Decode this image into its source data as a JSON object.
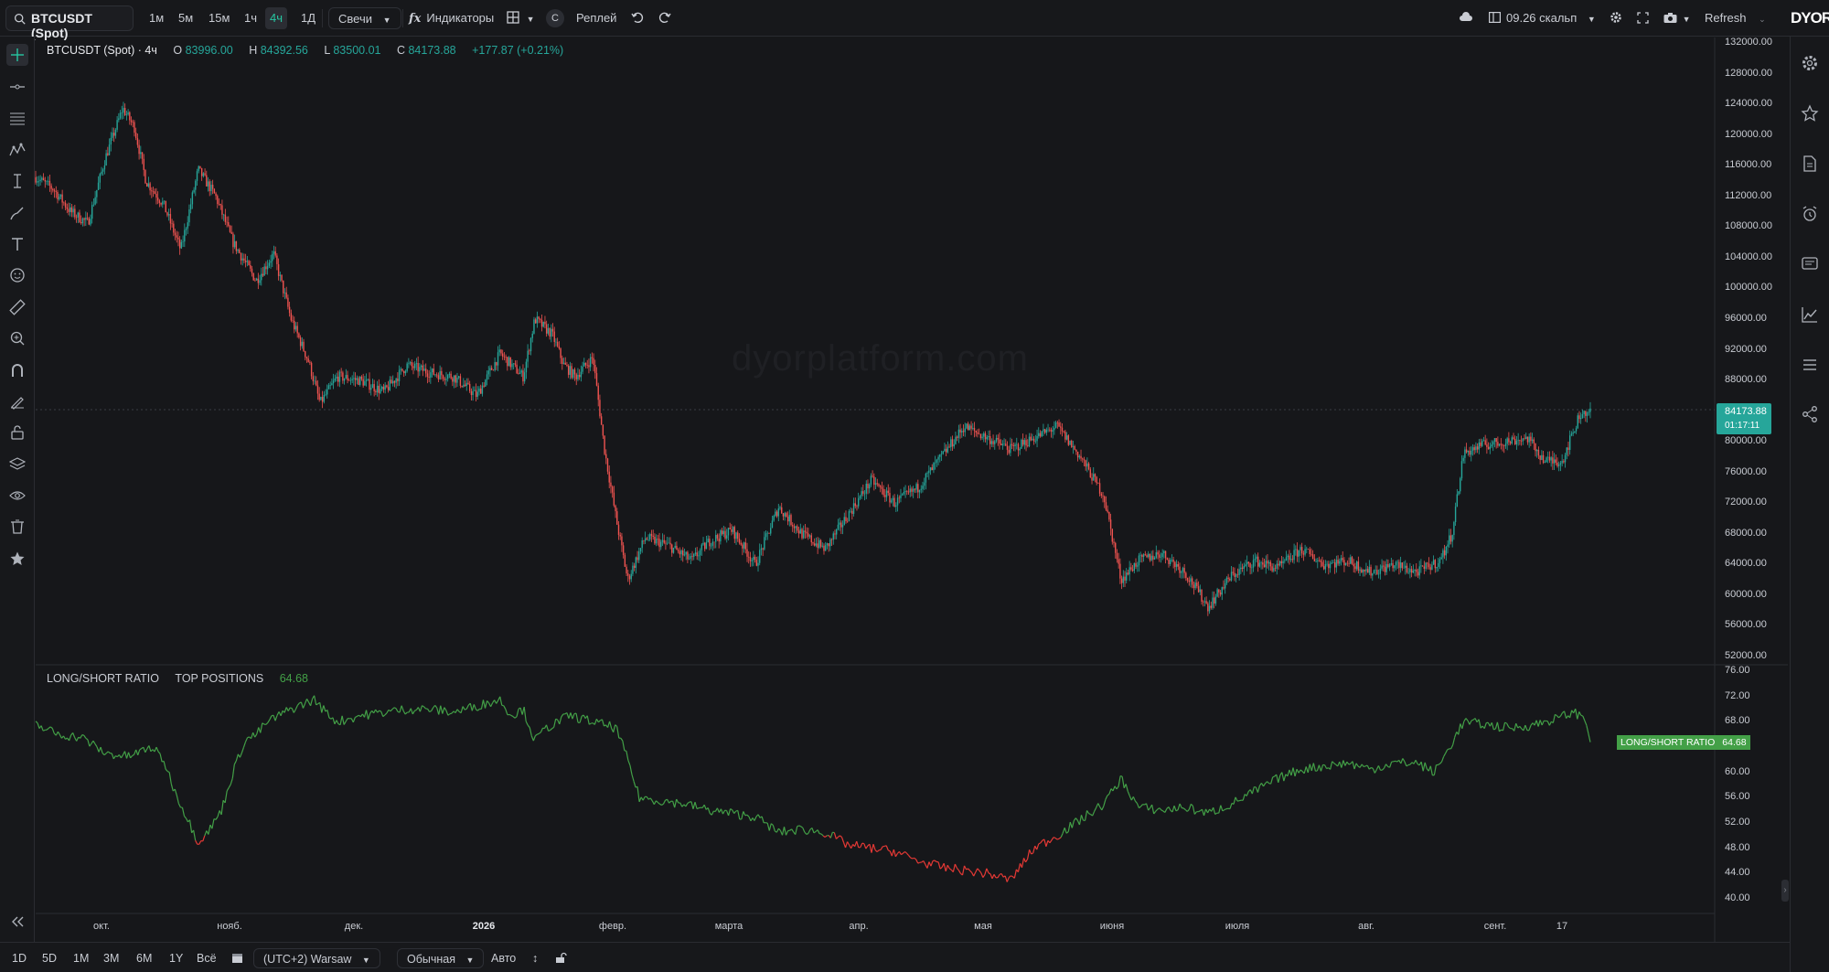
{
  "toolbar": {
    "symbol": "BTCUSDT (Spot)",
    "intervals": [
      "1м",
      "5м",
      "15м",
      "1ч",
      "4ч",
      "1Д"
    ],
    "active_interval": "4ч",
    "chart_style": "Свечи",
    "indicators": "Индикаторы",
    "compare_label": "С",
    "replay": "Реплей",
    "layout_name": "09.26 скальп",
    "refresh": "Refresh",
    "logo": "DYOR"
  },
  "legend": {
    "title": "BTCUSDT (Spot) · 4ч",
    "o_label": "O",
    "o_value": "83996.00",
    "h_label": "H",
    "h_value": "84392.56",
    "l_label": "L",
    "l_value": "83500.01",
    "c_label": "C",
    "c_value": "84173.88",
    "change": "+177.87 (+0.21%)"
  },
  "price_tag": {
    "price": "84173.88",
    "countdown": "01:17:11"
  },
  "watermark": "dyorplatform.com",
  "indicator": {
    "name": "LONG/SHORT RATIO",
    "sub": "TOP POSITIONS",
    "value": "64.68",
    "tag_label": "LONG/SHORT RATIO",
    "tag_value": "64.68"
  },
  "colors": {
    "up": "#26a69a",
    "down": "#ef5350",
    "ratio_up": "#43a047",
    "ratio_down": "#e53935",
    "bg": "#16171a"
  },
  "bottombar": {
    "ranges": [
      "1D",
      "5D",
      "1M",
      "3M",
      "6M",
      "1Y",
      "Всё"
    ],
    "timezone": "(UTC+2) Warsaw",
    "scale_mode": "Обычная",
    "auto": "Авто"
  },
  "chart_data": [
    {
      "type": "candlestick",
      "title": "BTCUSDT (Spot) · 4ч",
      "x_ticks": [
        "окт.",
        "нояб.",
        "дек.",
        "2026",
        "февр.",
        "марта",
        "апр.",
        "мая",
        "июня",
        "июля",
        "авг.",
        "сент.",
        "17"
      ],
      "y_ticks": [
        "132000.00",
        "128000.00",
        "124000.00",
        "120000.00",
        "116000.00",
        "112000.00",
        "108000.00",
        "104000.00",
        "100000.00",
        "96000.00",
        "92000.00",
        "88000.00",
        "84000.00",
        "80000.00",
        "76000.00",
        "72000.00",
        "68000.00",
        "64000.00",
        "60000.00",
        "56000.00",
        "52000.00"
      ],
      "ylim": [
        52000,
        132000
      ],
      "close_path": [
        [
          0,
          114500
        ],
        [
          15,
          113000
        ],
        [
          30,
          110000
        ],
        [
          45,
          108500
        ],
        [
          60,
          117000
        ],
        [
          75,
          123500
        ],
        [
          85,
          121000
        ],
        [
          95,
          114000
        ],
        [
          110,
          111000
        ],
        [
          125,
          105000
        ],
        [
          140,
          115500
        ],
        [
          155,
          112000
        ],
        [
          170,
          106000
        ],
        [
          190,
          101000
        ],
        [
          205,
          104500
        ],
        [
          220,
          96000
        ],
        [
          235,
          90500
        ],
        [
          245,
          85000
        ],
        [
          260,
          88500
        ],
        [
          280,
          88000
        ],
        [
          300,
          86500
        ],
        [
          320,
          90000
        ],
        [
          340,
          89000
        ],
        [
          360,
          88500
        ],
        [
          380,
          86000
        ],
        [
          400,
          91500
        ],
        [
          420,
          88500
        ],
        [
          430,
          96000
        ],
        [
          445,
          94000
        ],
        [
          455,
          90000
        ],
        [
          465,
          88500
        ],
        [
          480,
          91000
        ],
        [
          490,
          79000
        ],
        [
          500,
          70000
        ],
        [
          510,
          62000
        ],
        [
          525,
          67500
        ],
        [
          545,
          66500
        ],
        [
          565,
          64500
        ],
        [
          580,
          67000
        ],
        [
          600,
          68500
        ],
        [
          620,
          64000
        ],
        [
          640,
          71500
        ],
        [
          660,
          68000
        ],
        [
          680,
          66000
        ],
        [
          700,
          70500
        ],
        [
          720,
          75000
        ],
        [
          740,
          72000
        ],
        [
          760,
          74000
        ],
        [
          780,
          78000
        ],
        [
          800,
          82000
        ],
        [
          820,
          80500
        ],
        [
          840,
          79000
        ],
        [
          860,
          80500
        ],
        [
          880,
          82000
        ],
        [
          900,
          78000
        ],
        [
          920,
          73000
        ],
        [
          935,
          62000
        ],
        [
          950,
          64500
        ],
        [
          970,
          65500
        ],
        [
          990,
          63000
        ],
        [
          1010,
          58500
        ],
        [
          1030,
          62500
        ],
        [
          1050,
          64500
        ],
        [
          1070,
          63500
        ],
        [
          1090,
          66000
        ],
        [
          1110,
          64000
        ],
        [
          1130,
          64500
        ],
        [
          1150,
          63000
        ],
        [
          1170,
          64000
        ],
        [
          1190,
          63000
        ],
        [
          1210,
          64500
        ],
        [
          1220,
          68000
        ],
        [
          1230,
          78500
        ],
        [
          1245,
          79500
        ],
        [
          1265,
          80000
        ],
        [
          1285,
          80500
        ],
        [
          1300,
          77500
        ],
        [
          1315,
          77500
        ],
        [
          1330,
          83500
        ],
        [
          1340,
          84173.88
        ]
      ]
    },
    {
      "type": "line",
      "title": "LONG/SHORT RATIO",
      "y_ticks": [
        "76.00",
        "72.00",
        "68.00",
        "64.00",
        "60.00",
        "56.00",
        "52.00",
        "48.00",
        "44.00",
        "40.00"
      ],
      "ylim": [
        40,
        76
      ],
      "series": [
        {
          "name": "TOP POSITIONS",
          "points": [
            [
              0,
              67.5
            ],
            [
              20,
              66
            ],
            [
              40,
              65.5
            ],
            [
              60,
              63
            ],
            [
              80,
              62.5
            ],
            [
              100,
              64
            ],
            [
              110,
              62
            ],
            [
              120,
              57
            ],
            [
              130,
              53
            ],
            [
              140,
              49
            ],
            [
              150,
              51
            ],
            [
              160,
              54
            ],
            [
              170,
              60
            ],
            [
              180,
              65
            ],
            [
              190,
              66
            ],
            [
              200,
              68
            ],
            [
              220,
              70
            ],
            [
              240,
              71.5
            ],
            [
              250,
              69.5
            ],
            [
              260,
              68
            ],
            [
              280,
              69
            ],
            [
              300,
              69.5
            ],
            [
              320,
              70
            ],
            [
              340,
              70
            ],
            [
              360,
              69.5
            ],
            [
              380,
              70.5
            ],
            [
              400,
              71.5
            ],
            [
              410,
              69
            ],
            [
              420,
              70
            ],
            [
              430,
              65
            ],
            [
              440,
              67
            ],
            [
              460,
              69
            ],
            [
              480,
              68
            ],
            [
              500,
              67
            ],
            [
              510,
              62
            ],
            [
              520,
              56
            ],
            [
              540,
              55.5
            ],
            [
              560,
              55
            ],
            [
              580,
              54
            ],
            [
              600,
              53.5
            ],
            [
              620,
              53
            ],
            [
              640,
              50.5
            ],
            [
              660,
              51
            ],
            [
              680,
              50.5
            ],
            [
              700,
              48.5
            ],
            [
              720,
              48
            ],
            [
              740,
              47.5
            ],
            [
              760,
              46
            ],
            [
              780,
              45
            ],
            [
              800,
              44.5
            ],
            [
              820,
              44
            ],
            [
              840,
              43
            ],
            [
              860,
              48
            ],
            [
              880,
              50
            ],
            [
              900,
              52.5
            ],
            [
              920,
              55
            ],
            [
              935,
              59
            ],
            [
              950,
              54.5
            ],
            [
              970,
              54
            ],
            [
              990,
              54.5
            ],
            [
              1010,
              53.5
            ],
            [
              1030,
              55
            ],
            [
              1050,
              57
            ],
            [
              1070,
              59
            ],
            [
              1090,
              60.5
            ],
            [
              1110,
              61
            ],
            [
              1130,
              61.5
            ],
            [
              1150,
              60.5
            ],
            [
              1170,
              61.5
            ],
            [
              1190,
              61.5
            ],
            [
              1205,
              60
            ],
            [
              1215,
              63
            ],
            [
              1230,
              68
            ],
            [
              1250,
              67.5
            ],
            [
              1270,
              67
            ],
            [
              1290,
              67.5
            ],
            [
              1310,
              68.5
            ],
            [
              1325,
              69.5
            ],
            [
              1335,
              68.5
            ],
            [
              1340,
              64.68
            ]
          ]
        }
      ]
    }
  ]
}
